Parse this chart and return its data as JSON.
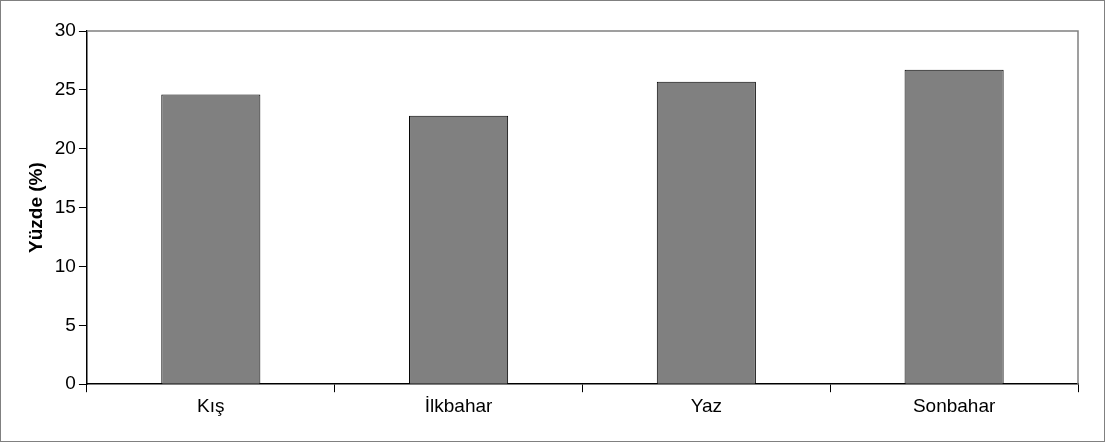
{
  "chart_data": {
    "type": "bar",
    "ylabel": "Yüzde (%)",
    "categories": [
      "Kış",
      "İlkbahar",
      "Yaz",
      "Sonbahar"
    ],
    "values": [
      24.6,
      22.8,
      25.7,
      26.7
    ],
    "color": "#808080",
    "ylim": [
      0,
      30
    ],
    "yticks": [
      0,
      5,
      10,
      15,
      20,
      25,
      30
    ],
    "grid": false,
    "legend": false
  }
}
